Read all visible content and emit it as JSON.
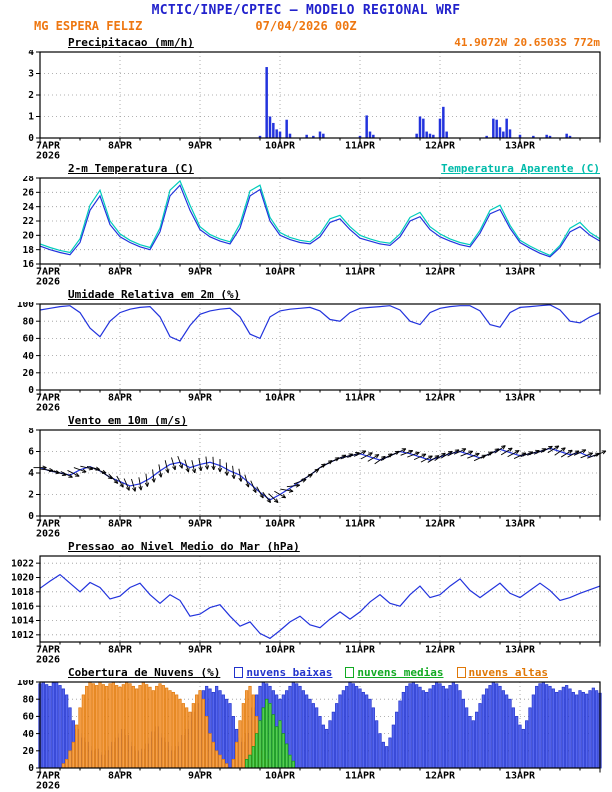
{
  "header": {
    "title": "MCTIC/INPE/CPTEC — MODELO REGIONAL WRF",
    "station": "MG ESPERA FELIZ",
    "run_datetime": "07/04/2026 00Z",
    "location": "41.9072W 20.6503S 772m"
  },
  "colors": {
    "header_blue": "#2222cc",
    "orange": "#ee7711",
    "line_blue": "#2233dd",
    "cyan": "#00ccbb",
    "green": "#11aa22",
    "grid": "#999999",
    "axis": "#000000"
  },
  "time_axis": {
    "day_labels": [
      "7APR",
      "8APR",
      "9APR",
      "10APR",
      "11APR",
      "12APR",
      "13APR"
    ],
    "year_label": "2026",
    "hours_total": 168,
    "major_tick_h": 24,
    "minor_tick_h": 6
  },
  "chart_data": [
    {
      "id": "precipitation",
      "type": "bar",
      "title": "Precipitacao (mm/h)",
      "right_label": "41.9072W 20.6503S 772m",
      "ylim": [
        0,
        4
      ],
      "yticks": [
        0,
        1,
        2,
        3,
        4
      ],
      "bar_series": [
        {
          "name": "precipitacao",
          "fill": "#2233dd",
          "values_by_hour": {
            "66": 0.1,
            "68": 3.3,
            "69": 1.0,
            "70": 0.7,
            "71": 0.4,
            "72": 0.3,
            "74": 0.85,
            "75": 0.2,
            "80": 0.15,
            "82": 0.1,
            "84": 0.3,
            "85": 0.2,
            "96": 0.1,
            "98": 1.05,
            "99": 0.3,
            "100": 0.15,
            "113": 0.2,
            "114": 1.0,
            "115": 0.9,
            "116": 0.3,
            "117": 0.2,
            "118": 0.15,
            "120": 0.9,
            "121": 1.45,
            "122": 0.3,
            "134": 0.1,
            "136": 0.9,
            "137": 0.85,
            "138": 0.5,
            "139": 0.3,
            "140": 0.9,
            "141": 0.4,
            "144": 0.15,
            "148": 0.1,
            "152": 0.15,
            "153": 0.1,
            "158": 0.2,
            "159": 0.1
          }
        }
      ]
    },
    {
      "id": "temperature_2m",
      "type": "line",
      "title": "2-m Temperatura (C)",
      "right_label": "Temperatura Aparente (C)",
      "ylim": [
        16,
        28
      ],
      "yticks": [
        16,
        18,
        20,
        22,
        24,
        26,
        28
      ],
      "x_step_h": 3,
      "series": [
        {
          "name": "Temperatura Aparente (C)",
          "color": "#00ccbb",
          "values": [
            18.8,
            18.3,
            17.9,
            17.6,
            19.5,
            24.2,
            26.3,
            22.0,
            20.2,
            19.3,
            18.7,
            18.3,
            21.0,
            26.3,
            27.6,
            24.2,
            21.2,
            20.1,
            19.5,
            19.1,
            21.6,
            26.2,
            27.0,
            22.5,
            20.4,
            19.7,
            19.3,
            19.1,
            20.2,
            22.3,
            22.8,
            21.2,
            20.0,
            19.5,
            19.1,
            18.9,
            20.2,
            22.5,
            23.2,
            21.2,
            20.2,
            19.5,
            19.0,
            18.7,
            20.7,
            23.5,
            24.2,
            21.4,
            19.3,
            18.5,
            17.8,
            17.2,
            18.6,
            21.0,
            21.8,
            20.4,
            19.5
          ]
        },
        {
          "name": "2-m Temperatura (C)",
          "color": "#2233dd",
          "values": [
            18.5,
            18.0,
            17.6,
            17.3,
            19.0,
            23.5,
            25.5,
            21.5,
            19.8,
            19.0,
            18.4,
            18.0,
            20.5,
            25.5,
            27.0,
            23.5,
            20.8,
            19.8,
            19.2,
            18.8,
            21.0,
            25.5,
            26.4,
            22.0,
            20.0,
            19.4,
            19.0,
            18.8,
            19.8,
            21.8,
            22.3,
            20.8,
            19.6,
            19.2,
            18.8,
            18.6,
            19.8,
            22.0,
            22.6,
            20.8,
            19.8,
            19.2,
            18.7,
            18.4,
            20.3,
            23.0,
            23.6,
            21.0,
            19.0,
            18.2,
            17.5,
            17.0,
            18.3,
            20.5,
            21.2,
            20.0,
            19.2
          ]
        }
      ]
    },
    {
      "id": "relative_humidity_2m",
      "type": "line",
      "title": "Umidade Relativa em 2m (%)",
      "ylim": [
        0,
        100
      ],
      "yticks": [
        0,
        20,
        40,
        60,
        80,
        100
      ],
      "x_step_h": 3,
      "series": [
        {
          "name": "Umidade Relativa",
          "color": "#2233dd",
          "values": [
            93,
            95,
            97,
            98,
            90,
            72,
            62,
            80,
            90,
            94,
            96,
            97,
            85,
            62,
            57,
            75,
            88,
            92,
            94,
            95,
            85,
            65,
            60,
            85,
            92,
            94,
            95,
            96,
            92,
            82,
            80,
            90,
            95,
            96,
            97,
            98,
            93,
            80,
            76,
            90,
            95,
            97,
            98,
            98,
            92,
            76,
            73,
            90,
            96,
            97,
            98,
            99,
            93,
            80,
            78,
            85,
            90
          ]
        }
      ]
    },
    {
      "id": "wind_10m",
      "type": "line",
      "title": "Vento em 10m (m/s)",
      "ylim": [
        0,
        8
      ],
      "yticks": [
        0,
        2,
        4,
        6,
        8
      ],
      "x_step_h": 3,
      "series": [
        {
          "name": "Velocidade do vento",
          "color": "#2233dd",
          "values": [
            4.5,
            4.2,
            4.0,
            3.8,
            4.3,
            4.6,
            4.2,
            3.6,
            3.2,
            2.8,
            3.0,
            3.5,
            4.2,
            4.8,
            5.0,
            4.5,
            4.8,
            5.0,
            4.7,
            4.2,
            3.8,
            3.0,
            2.2,
            1.5,
            2.0,
            2.6,
            3.2,
            3.8,
            4.5,
            5.0,
            5.4,
            5.6,
            5.8,
            5.5,
            5.2,
            5.6,
            6.0,
            5.8,
            5.5,
            5.2,
            5.5,
            5.8,
            6.0,
            5.7,
            5.4,
            5.8,
            6.2,
            5.9,
            5.6,
            5.8,
            6.0,
            6.3,
            6.0,
            5.7,
            5.9,
            5.5,
            5.8
          ]
        }
      ],
      "barbs": {
        "every_h": 2,
        "dir_deg_toward": [
          0,
          -10,
          -20,
          -30,
          -20,
          -10,
          -20,
          -40,
          -60,
          -70,
          -80,
          -85,
          -80,
          -75,
          -70,
          -75,
          -80,
          -85,
          -90,
          -85,
          -80,
          -70,
          -60,
          -50,
          -30,
          0,
          20,
          30,
          35,
          30,
          25,
          20,
          25,
          30,
          35,
          30,
          25,
          20,
          25,
          30,
          35,
          30,
          25,
          20,
          25,
          30,
          35,
          30,
          25,
          20,
          25,
          30,
          35,
          30,
          25,
          20,
          25
        ]
      }
    },
    {
      "id": "mslp",
      "type": "line",
      "title": "Pressao ao Nivel Medio do Mar (hPa)",
      "ylim": [
        1011,
        1023
      ],
      "yticks": [
        1012,
        1014,
        1016,
        1018,
        1020,
        1022
      ],
      "x_step_h": 3,
      "series": [
        {
          "name": "Pressao ao nivel medio do mar",
          "color": "#2233dd",
          "values": [
            1018.5,
            1019.5,
            1020.4,
            1019.2,
            1018.0,
            1019.3,
            1018.6,
            1017.0,
            1017.4,
            1018.6,
            1019.2,
            1017.6,
            1016.4,
            1017.6,
            1016.8,
            1014.6,
            1014.9,
            1015.8,
            1016.2,
            1014.6,
            1013.2,
            1013.8,
            1012.2,
            1011.5,
            1012.6,
            1013.8,
            1014.6,
            1013.4,
            1013.0,
            1014.2,
            1015.2,
            1014.2,
            1015.2,
            1016.6,
            1017.6,
            1016.4,
            1016.0,
            1017.6,
            1018.8,
            1017.2,
            1017.6,
            1018.8,
            1019.8,
            1018.2,
            1017.2,
            1018.2,
            1019.2,
            1017.8,
            1017.2,
            1018.2,
            1019.2,
            1018.2,
            1016.8,
            1017.2,
            1017.8,
            1018.3,
            1018.8
          ]
        }
      ]
    },
    {
      "id": "cloud_cover",
      "type": "bar",
      "title": "Cobertura de Nuvens (%)",
      "ylim": [
        0,
        100
      ],
      "yticks": [
        0,
        20,
        40,
        60,
        80,
        100
      ],
      "legend": [
        {
          "label": "nuvens baixas",
          "color": "#2233cc"
        },
        {
          "label": "nuvens medias",
          "color": "#11aa22"
        },
        {
          "label": "nuvens altas",
          "color": "#e07808"
        }
      ],
      "bar_series": [
        {
          "name": "nuvens baixas",
          "fill": "#5566ee",
          "stroke": "#2233cc",
          "values_hourly": [
            98,
            100,
            97,
            95,
            99,
            100,
            96,
            92,
            85,
            70,
            55,
            45,
            40,
            35,
            30,
            25,
            20,
            22,
            18,
            15,
            20,
            25,
            30,
            35,
            40,
            45,
            38,
            30,
            25,
            20,
            18,
            22,
            28,
            35,
            42,
            48,
            40,
            35,
            30,
            25,
            20,
            25,
            30,
            38,
            45,
            55,
            65,
            75,
            85,
            90,
            95,
            92,
            88,
            95,
            90,
            85,
            80,
            75,
            60,
            45,
            35,
            30,
            40,
            55,
            70,
            85,
            95,
            100,
            98,
            95,
            90,
            85,
            80,
            85,
            90,
            95,
            100,
            98,
            95,
            90,
            85,
            80,
            75,
            70,
            60,
            50,
            45,
            55,
            65,
            75,
            85,
            90,
            95,
            100,
            98,
            95,
            92,
            88,
            85,
            80,
            70,
            55,
            40,
            30,
            25,
            35,
            50,
            65,
            78,
            88,
            95,
            98,
            100,
            97,
            94,
            90,
            88,
            92,
            96,
            100,
            98,
            95,
            92,
            96,
            100,
            97,
            90,
            80,
            70,
            60,
            55,
            65,
            75,
            85,
            92,
            96,
            100,
            98,
            95,
            90,
            85,
            80,
            70,
            60,
            50,
            45,
            55,
            70,
            85,
            95,
            98,
            100,
            97,
            95,
            92,
            88,
            90,
            94,
            96,
            92,
            88,
            85,
            90,
            88,
            86,
            90,
            93,
            90,
            87
          ]
        },
        {
          "name": "nuvens altas",
          "fill": "#f5a04a",
          "stroke": "#e07808",
          "values_hourly": [
            0,
            0,
            0,
            0,
            0,
            0,
            0,
            5,
            10,
            20,
            30,
            50,
            70,
            85,
            95,
            100,
            98,
            96,
            100,
            97,
            95,
            98,
            100,
            96,
            94,
            97,
            100,
            98,
            95,
            92,
            96,
            100,
            97,
            94,
            90,
            95,
            98,
            96,
            93,
            90,
            88,
            85,
            80,
            75,
            70,
            65,
            75,
            85,
            90,
            80,
            60,
            40,
            30,
            20,
            15,
            10,
            5,
            0,
            10,
            30,
            55,
            75,
            90,
            95,
            85,
            60,
            40,
            20,
            10,
            5,
            0,
            0,
            0,
            0,
            0,
            0,
            0,
            0,
            0,
            0,
            0,
            0,
            0,
            0,
            0,
            0,
            0,
            0,
            0,
            0,
            0,
            0,
            0,
            0,
            0,
            0,
            0,
            0,
            0,
            0,
            0,
            0,
            0,
            0,
            0,
            0,
            0,
            0,
            0,
            0,
            0,
            0,
            0,
            0,
            0,
            0,
            0,
            0,
            0,
            0,
            0,
            0,
            0,
            0,
            0,
            0,
            0,
            0,
            0,
            0,
            0,
            0,
            0,
            0,
            0,
            0,
            0,
            0,
            0,
            0,
            0,
            0,
            0,
            0,
            0,
            0,
            0,
            0,
            0,
            0,
            0,
            0,
            0,
            0,
            0,
            0,
            0,
            0,
            0,
            0,
            0,
            0,
            0,
            0,
            0,
            0,
            0,
            0,
            0
          ]
        },
        {
          "name": "nuvens medias",
          "fill": "#55cc55",
          "stroke": "#119911",
          "values_by_hour": {
            "62": 10,
            "63": 15,
            "64": 25,
            "65": 40,
            "66": 55,
            "67": 70,
            "68": 80,
            "69": 75,
            "70": 62,
            "71": 48,
            "72": 55,
            "73": 40,
            "74": 28,
            "75": 15,
            "76": 8
          }
        }
      ]
    }
  ]
}
